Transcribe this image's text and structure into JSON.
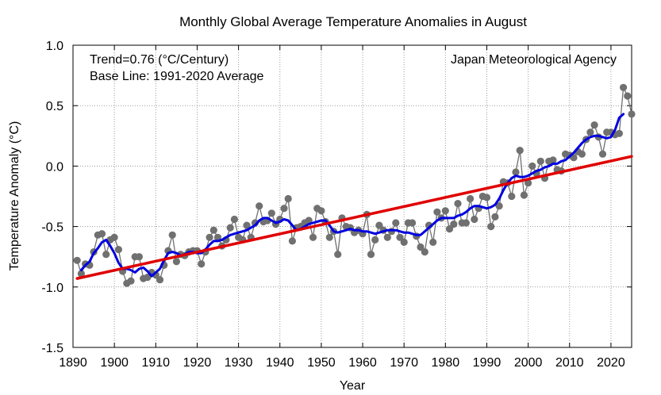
{
  "chart_data": {
    "type": "line",
    "title": "Monthly Global Average Temperature Anomalies in August",
    "xlabel": "Year",
    "ylabel": "Temperature Anomaly (°C)",
    "xlim": [
      1890,
      2025
    ],
    "ylim": [
      -1.5,
      1.0
    ],
    "x_ticks": [
      1890,
      1900,
      1910,
      1920,
      1930,
      1940,
      1950,
      1960,
      1970,
      1980,
      1990,
      2000,
      2010,
      2020
    ],
    "y_ticks": [
      -1.5,
      -1.0,
      -0.5,
      0.0,
      0.5,
      1.0
    ],
    "x_tick_labels": [
      "1890",
      "1900",
      "1910",
      "1920",
      "1930",
      "1940",
      "1950",
      "1960",
      "1970",
      "1980",
      "1990",
      "2000",
      "2010",
      "2020"
    ],
    "y_tick_labels": [
      "-1.5",
      "-1.0",
      "-0.5",
      "0.0",
      "0.5",
      "1.0"
    ],
    "grid": true,
    "annotations": {
      "trend": "Trend=0.76 (°C/Century)",
      "baseline": "Base Line: 1991-2020 Average",
      "source": "Japan Meteorological Agency"
    },
    "colors": {
      "points": "#707070",
      "smoothed": "#0000e0",
      "trend": "#e00000"
    },
    "series": [
      {
        "x": [
          1891,
          1892,
          1893,
          1894,
          1895,
          1896,
          1897,
          1898,
          1899,
          1900,
          1901,
          1902,
          1903,
          1904,
          1905,
          1906,
          1907,
          1908,
          1909,
          1910,
          1911,
          1912,
          1913,
          1914,
          1915,
          1916,
          1917,
          1918,
          1919,
          1920,
          1921,
          1922,
          1923,
          1924,
          1925,
          1926,
          1927,
          1928,
          1929,
          1930,
          1931,
          1932,
          1933,
          1934,
          1935,
          1936,
          1937,
          1938,
          1939,
          1940,
          1941,
          1942,
          1943,
          1944,
          1945,
          1946,
          1947,
          1948,
          1949,
          1950,
          1951,
          1952,
          1953,
          1954,
          1955,
          1956,
          1957,
          1958,
          1959,
          1960,
          1961,
          1962,
          1963,
          1964,
          1965,
          1966,
          1967,
          1968,
          1969,
          1970,
          1971,
          1972,
          1973,
          1974,
          1975,
          1976,
          1977,
          1978,
          1979,
          1980,
          1981,
          1982,
          1983,
          1984,
          1985,
          1986,
          1987,
          1988,
          1989,
          1990,
          1991,
          1992,
          1993,
          1994,
          1995,
          1996,
          1997,
          1998,
          1999,
          2000,
          2001,
          2002,
          2003,
          2004,
          2005,
          2006,
          2007,
          2008,
          2009,
          2010,
          2011,
          2012,
          2013,
          2014,
          2015,
          2016,
          2017,
          2018,
          2019,
          2020,
          2021,
          2022,
          2023,
          2024,
          2025
        ],
        "y": [
          -0.78,
          -0.89,
          -0.81,
          -0.82,
          -0.71,
          -0.57,
          -0.56,
          -0.73,
          -0.61,
          -0.59,
          -0.69,
          -0.87,
          -0.97,
          -0.95,
          -0.75,
          -0.75,
          -0.93,
          -0.92,
          -0.88,
          -0.9,
          -0.94,
          -0.82,
          -0.7,
          -0.57,
          -0.79,
          -0.73,
          -0.74,
          -0.71,
          -0.7,
          -0.7,
          -0.81,
          -0.71,
          -0.59,
          -0.53,
          -0.59,
          -0.66,
          -0.61,
          -0.51,
          -0.44,
          -0.59,
          -0.61,
          -0.49,
          -0.59,
          -0.47,
          -0.33,
          -0.46,
          -0.45,
          -0.39,
          -0.48,
          -0.44,
          -0.35,
          -0.27,
          -0.62,
          -0.51,
          -0.5,
          -0.47,
          -0.45,
          -0.59,
          -0.35,
          -0.37,
          -0.46,
          -0.59,
          -0.54,
          -0.73,
          -0.43,
          -0.5,
          -0.51,
          -0.55,
          -0.53,
          -0.56,
          -0.4,
          -0.73,
          -0.61,
          -0.49,
          -0.53,
          -0.59,
          -0.54,
          -0.47,
          -0.59,
          -0.63,
          -0.47,
          -0.47,
          -0.58,
          -0.67,
          -0.71,
          -0.49,
          -0.63,
          -0.38,
          -0.43,
          -0.37,
          -0.52,
          -0.48,
          -0.31,
          -0.47,
          -0.47,
          -0.27,
          -0.44,
          -0.35,
          -0.25,
          -0.26,
          -0.5,
          -0.42,
          -0.33,
          -0.13,
          -0.14,
          -0.25,
          -0.05,
          0.13,
          -0.24,
          -0.14,
          0.0,
          -0.06,
          0.04,
          -0.1,
          0.04,
          0.05,
          -0.03,
          -0.04,
          0.1,
          0.09,
          0.07,
          0.12,
          0.1,
          0.22,
          0.28,
          0.34,
          0.24,
          0.1,
          0.28,
          0.28,
          0.26,
          0.27,
          0.65,
          0.58,
          0.43
        ]
      },
      {
        "x": [
          1892,
          1893,
          1894,
          1895,
          1896,
          1897,
          1898,
          1899,
          1900,
          1901,
          1902,
          1903,
          1904,
          1905,
          1906,
          1907,
          1908,
          1909,
          1910,
          1911,
          1912,
          1913,
          1914,
          1915,
          1916,
          1917,
          1918,
          1919,
          1920,
          1921,
          1922,
          1923,
          1924,
          1925,
          1926,
          1927,
          1928,
          1929,
          1930,
          1931,
          1932,
          1933,
          1934,
          1935,
          1936,
          1937,
          1938,
          1939,
          1940,
          1941,
          1942,
          1943,
          1944,
          1945,
          1946,
          1947,
          1948,
          1949,
          1950,
          1951,
          1952,
          1953,
          1954,
          1955,
          1956,
          1957,
          1958,
          1959,
          1960,
          1961,
          1962,
          1963,
          1964,
          1965,
          1966,
          1967,
          1968,
          1969,
          1970,
          1971,
          1972,
          1973,
          1974,
          1975,
          1976,
          1977,
          1978,
          1979,
          1980,
          1981,
          1982,
          1983,
          1984,
          1985,
          1986,
          1987,
          1988,
          1989,
          1990,
          1991,
          1992,
          1993,
          1994,
          1995,
          1996,
          1997,
          1998,
          1999,
          2000,
          2001,
          2002,
          2003,
          2004,
          2005,
          2006,
          2007,
          2008,
          2009,
          2010,
          2011,
          2012,
          2013,
          2014,
          2015,
          2016,
          2017,
          2018,
          2019,
          2020,
          2021,
          2022,
          2023
        ],
        "y": [
          -0.86,
          -0.82,
          -0.79,
          -0.72,
          -0.68,
          -0.63,
          -0.61,
          -0.66,
          -0.72,
          -0.8,
          -0.85,
          -0.85,
          -0.86,
          -0.88,
          -0.85,
          -0.84,
          -0.87,
          -0.91,
          -0.88,
          -0.85,
          -0.78,
          -0.72,
          -0.71,
          -0.72,
          -0.74,
          -0.73,
          -0.71,
          -0.71,
          -0.72,
          -0.72,
          -0.69,
          -0.65,
          -0.62,
          -0.62,
          -0.61,
          -0.59,
          -0.57,
          -0.56,
          -0.55,
          -0.54,
          -0.53,
          -0.51,
          -0.49,
          -0.45,
          -0.43,
          -0.43,
          -0.45,
          -0.47,
          -0.46,
          -0.44,
          -0.45,
          -0.49,
          -0.53,
          -0.52,
          -0.5,
          -0.48,
          -0.47,
          -0.46,
          -0.45,
          -0.45,
          -0.49,
          -0.54,
          -0.55,
          -0.54,
          -0.53,
          -0.52,
          -0.53,
          -0.53,
          -0.54,
          -0.54,
          -0.55,
          -0.56,
          -0.55,
          -0.54,
          -0.53,
          -0.53,
          -0.53,
          -0.54,
          -0.55,
          -0.55,
          -0.56,
          -0.57,
          -0.57,
          -0.54,
          -0.51,
          -0.48,
          -0.45,
          -0.43,
          -0.43,
          -0.43,
          -0.43,
          -0.41,
          -0.4,
          -0.38,
          -0.35,
          -0.33,
          -0.33,
          -0.34,
          -0.35,
          -0.34,
          -0.32,
          -0.27,
          -0.2,
          -0.14,
          -0.1,
          -0.08,
          -0.09,
          -0.09,
          -0.08,
          -0.06,
          -0.04,
          -0.03,
          -0.01,
          0.0,
          0.02,
          0.02,
          0.04,
          0.05,
          0.08,
          0.11,
          0.15,
          0.19,
          0.22,
          0.24,
          0.25,
          0.25,
          0.24,
          0.23,
          0.24,
          0.3,
          0.4,
          0.43
        ]
      },
      {
        "x": [
          1891,
          2025
        ],
        "y": [
          -0.93,
          0.08
        ]
      }
    ]
  }
}
